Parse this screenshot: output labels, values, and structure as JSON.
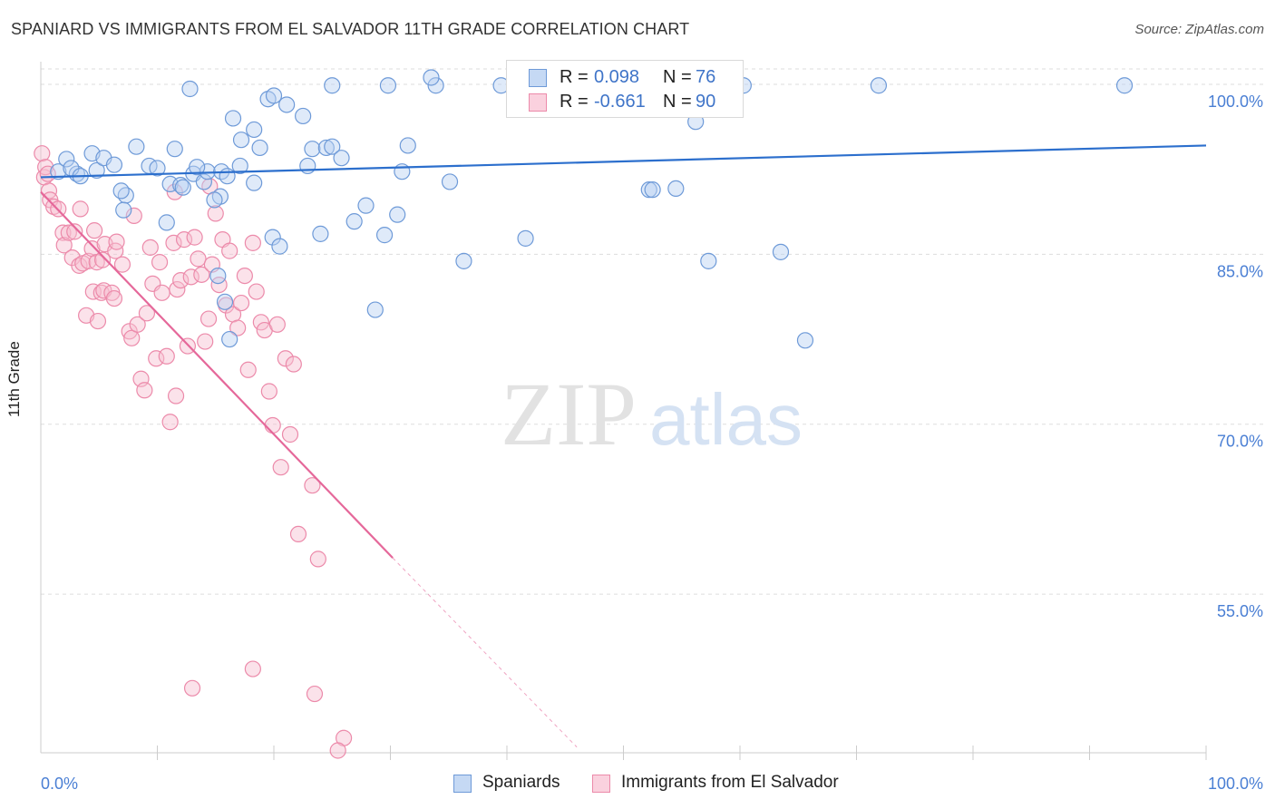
{
  "header": {
    "title": "SPANIARD VS IMMIGRANTS FROM EL SALVADOR 11TH GRADE CORRELATION CHART",
    "source": "Source: ZipAtlas.com"
  },
  "watermark": {
    "zip": "ZIP",
    "atlas": "atlas"
  },
  "legend": {
    "rows": [
      {
        "r_label": "R =",
        "r_value": "0.098",
        "n_label": "N =",
        "n_value": "76",
        "color": "#a9c6ee",
        "border": "#6e9ad8"
      },
      {
        "r_label": "R =",
        "r_value": "-0.661",
        "n_label": "N =",
        "n_value": "90",
        "color": "#f7bfd0",
        "border": "#ec8aaa"
      }
    ]
  },
  "bottom_legend": {
    "items": [
      {
        "label": "Spaniards",
        "color": "#c5d9f4",
        "border": "#6e9ad8"
      },
      {
        "label": "Immigrants from El Salvador",
        "color": "#fad1de",
        "border": "#ec8aaa"
      }
    ]
  },
  "chart_data": {
    "type": "scatter",
    "title": "SPANIARD VS IMMIGRANTS FROM EL SALVADOR 11TH GRADE CORRELATION CHART",
    "xlabel": "",
    "ylabel": "11th Grade",
    "xlim": [
      0,
      100
    ],
    "ylim": [
      41,
      102
    ],
    "x_tick_labels": {
      "left": "0.0%",
      "right": "100.0%"
    },
    "y_ticks": [
      {
        "value": 100,
        "label": "100.0%"
      },
      {
        "value": 85,
        "label": "85.0%"
      },
      {
        "value": 70,
        "label": "70.0%"
      },
      {
        "value": 55,
        "label": "55.0%"
      }
    ],
    "grid": true,
    "legend_position": "top-center",
    "colors": {
      "spaniards": "#6e9ad8",
      "el_salvador": "#ec8aaa",
      "spaniards_line": "#2c6fcd",
      "el_salvador_line": "#e5689a"
    },
    "series": [
      {
        "name": "Spaniards",
        "trend": {
          "x0": 0,
          "y0": 91.8,
          "x1": 100,
          "y1": 94.6
        },
        "points": [
          [
            1.5,
            92.3
          ],
          [
            2.2,
            93.4
          ],
          [
            3.1,
            92.1
          ],
          [
            2.6,
            92.6
          ],
          [
            4.4,
            93.9
          ],
          [
            4.8,
            92.4
          ],
          [
            5.4,
            93.5
          ],
          [
            6.3,
            92.9
          ],
          [
            3.4,
            91.9
          ],
          [
            7.3,
            90.2
          ],
          [
            8.2,
            94.5
          ],
          [
            9.3,
            92.8
          ],
          [
            10.0,
            92.6
          ],
          [
            11.1,
            91.2
          ],
          [
            11.5,
            94.3
          ],
          [
            12.0,
            91.1
          ],
          [
            12.2,
            90.9
          ],
          [
            13.1,
            92.1
          ],
          [
            14.0,
            91.4
          ],
          [
            14.3,
            92.3
          ],
          [
            15.4,
            90.1
          ],
          [
            15.5,
            92.3
          ],
          [
            16.0,
            91.9
          ],
          [
            17.1,
            92.8
          ],
          [
            18.3,
            91.3
          ],
          [
            13.4,
            92.7
          ],
          [
            14.9,
            89.8
          ],
          [
            10.8,
            87.8
          ],
          [
            7.1,
            88.9
          ],
          [
            6.9,
            90.6
          ],
          [
            12.8,
            99.6
          ],
          [
            16.5,
            97.0
          ],
          [
            17.2,
            95.1
          ],
          [
            18.3,
            96.0
          ],
          [
            18.8,
            94.4
          ],
          [
            19.5,
            98.7
          ],
          [
            20.0,
            99.0
          ],
          [
            21.1,
            98.2
          ],
          [
            22.5,
            97.2
          ],
          [
            23.3,
            94.3
          ],
          [
            24.5,
            94.4
          ],
          [
            22.9,
            92.8
          ],
          [
            25.0,
            94.5
          ],
          [
            25.8,
            93.5
          ],
          [
            31.5,
            94.6
          ],
          [
            31.0,
            92.3
          ],
          [
            35.1,
            91.4
          ],
          [
            30.6,
            88.5
          ],
          [
            27.9,
            89.3
          ],
          [
            26.9,
            87.9
          ],
          [
            29.5,
            86.7
          ],
          [
            24.0,
            86.8
          ],
          [
            19.9,
            86.5
          ],
          [
            20.5,
            85.7
          ],
          [
            15.2,
            83.1
          ],
          [
            15.8,
            80.8
          ],
          [
            16.2,
            77.5
          ],
          [
            28.7,
            80.1
          ],
          [
            36.3,
            84.4
          ],
          [
            41.6,
            86.4
          ],
          [
            52.2,
            90.7
          ],
          [
            52.5,
            90.7
          ],
          [
            54.5,
            90.8
          ],
          [
            56.2,
            96.7
          ],
          [
            57.3,
            84.4
          ],
          [
            63.5,
            85.2
          ],
          [
            65.6,
            77.4
          ],
          [
            25.0,
            99.9
          ],
          [
            29.8,
            99.9
          ],
          [
            33.9,
            99.9
          ],
          [
            39.5,
            99.9
          ],
          [
            50.5,
            99.9
          ],
          [
            60.3,
            99.9
          ],
          [
            71.9,
            99.9
          ],
          [
            93.0,
            99.9
          ],
          [
            33.5,
            100.6
          ]
        ]
      },
      {
        "name": "Immigrants from El Salvador",
        "trend": {
          "x0": 0,
          "y0": 90.5,
          "x1": 30.2,
          "y1": 58.2,
          "dash_to_x": 46.0,
          "dash_to_y": 41.5
        },
        "points": [
          [
            0.1,
            93.9
          ],
          [
            0.3,
            91.8
          ],
          [
            0.4,
            92.7
          ],
          [
            0.6,
            92.1
          ],
          [
            0.7,
            90.6
          ],
          [
            0.8,
            89.8
          ],
          [
            1.1,
            89.2
          ],
          [
            1.5,
            89.0
          ],
          [
            1.9,
            86.9
          ],
          [
            2.0,
            85.8
          ],
          [
            2.4,
            86.9
          ],
          [
            2.7,
            84.7
          ],
          [
            2.9,
            87.0
          ],
          [
            3.3,
            84.0
          ],
          [
            3.4,
            89.0
          ],
          [
            3.6,
            84.2
          ],
          [
            3.9,
            79.6
          ],
          [
            4.1,
            84.4
          ],
          [
            4.4,
            85.5
          ],
          [
            4.5,
            81.7
          ],
          [
            4.6,
            87.1
          ],
          [
            4.8,
            84.3
          ],
          [
            4.9,
            79.1
          ],
          [
            5.2,
            81.6
          ],
          [
            5.3,
            84.5
          ],
          [
            5.4,
            81.8
          ],
          [
            5.5,
            85.9
          ],
          [
            6.1,
            81.6
          ],
          [
            6.3,
            81.1
          ],
          [
            6.4,
            85.3
          ],
          [
            6.5,
            86.1
          ],
          [
            7.0,
            84.1
          ],
          [
            7.6,
            78.2
          ],
          [
            7.8,
            77.6
          ],
          [
            8.0,
            88.4
          ],
          [
            8.3,
            78.8
          ],
          [
            8.6,
            74.0
          ],
          [
            8.9,
            73.0
          ],
          [
            9.1,
            79.8
          ],
          [
            9.4,
            85.6
          ],
          [
            9.6,
            82.4
          ],
          [
            9.9,
            75.8
          ],
          [
            10.2,
            84.3
          ],
          [
            10.4,
            81.6
          ],
          [
            10.8,
            76.0
          ],
          [
            11.1,
            70.2
          ],
          [
            11.4,
            86.0
          ],
          [
            11.6,
            72.5
          ],
          [
            11.7,
            81.9
          ],
          [
            12.0,
            82.7
          ],
          [
            12.3,
            86.3
          ],
          [
            12.6,
            76.9
          ],
          [
            12.9,
            83.0
          ],
          [
            13.2,
            86.5
          ],
          [
            13.5,
            84.6
          ],
          [
            13.8,
            83.2
          ],
          [
            14.1,
            77.3
          ],
          [
            14.4,
            79.3
          ],
          [
            14.7,
            84.1
          ],
          [
            15.0,
            88.6
          ],
          [
            15.3,
            82.3
          ],
          [
            15.6,
            86.3
          ],
          [
            15.9,
            80.5
          ],
          [
            16.2,
            85.3
          ],
          [
            16.5,
            79.7
          ],
          [
            16.9,
            78.5
          ],
          [
            17.2,
            80.7
          ],
          [
            17.5,
            83.1
          ],
          [
            17.8,
            74.8
          ],
          [
            18.2,
            86.0
          ],
          [
            18.5,
            81.7
          ],
          [
            18.9,
            79.0
          ],
          [
            19.2,
            78.3
          ],
          [
            19.6,
            72.9
          ],
          [
            19.9,
            69.9
          ],
          [
            20.3,
            78.8
          ],
          [
            20.6,
            66.2
          ],
          [
            21.0,
            75.8
          ],
          [
            21.4,
            69.1
          ],
          [
            21.7,
            75.3
          ],
          [
            22.1,
            60.3
          ],
          [
            23.3,
            64.6
          ],
          [
            23.8,
            58.1
          ],
          [
            13.0,
            46.7
          ],
          [
            18.2,
            48.4
          ],
          [
            23.5,
            46.2
          ],
          [
            26.0,
            42.3
          ],
          [
            25.5,
            41.2
          ],
          [
            11.5,
            90.5
          ],
          [
            14.5,
            91.0
          ]
        ]
      }
    ]
  }
}
